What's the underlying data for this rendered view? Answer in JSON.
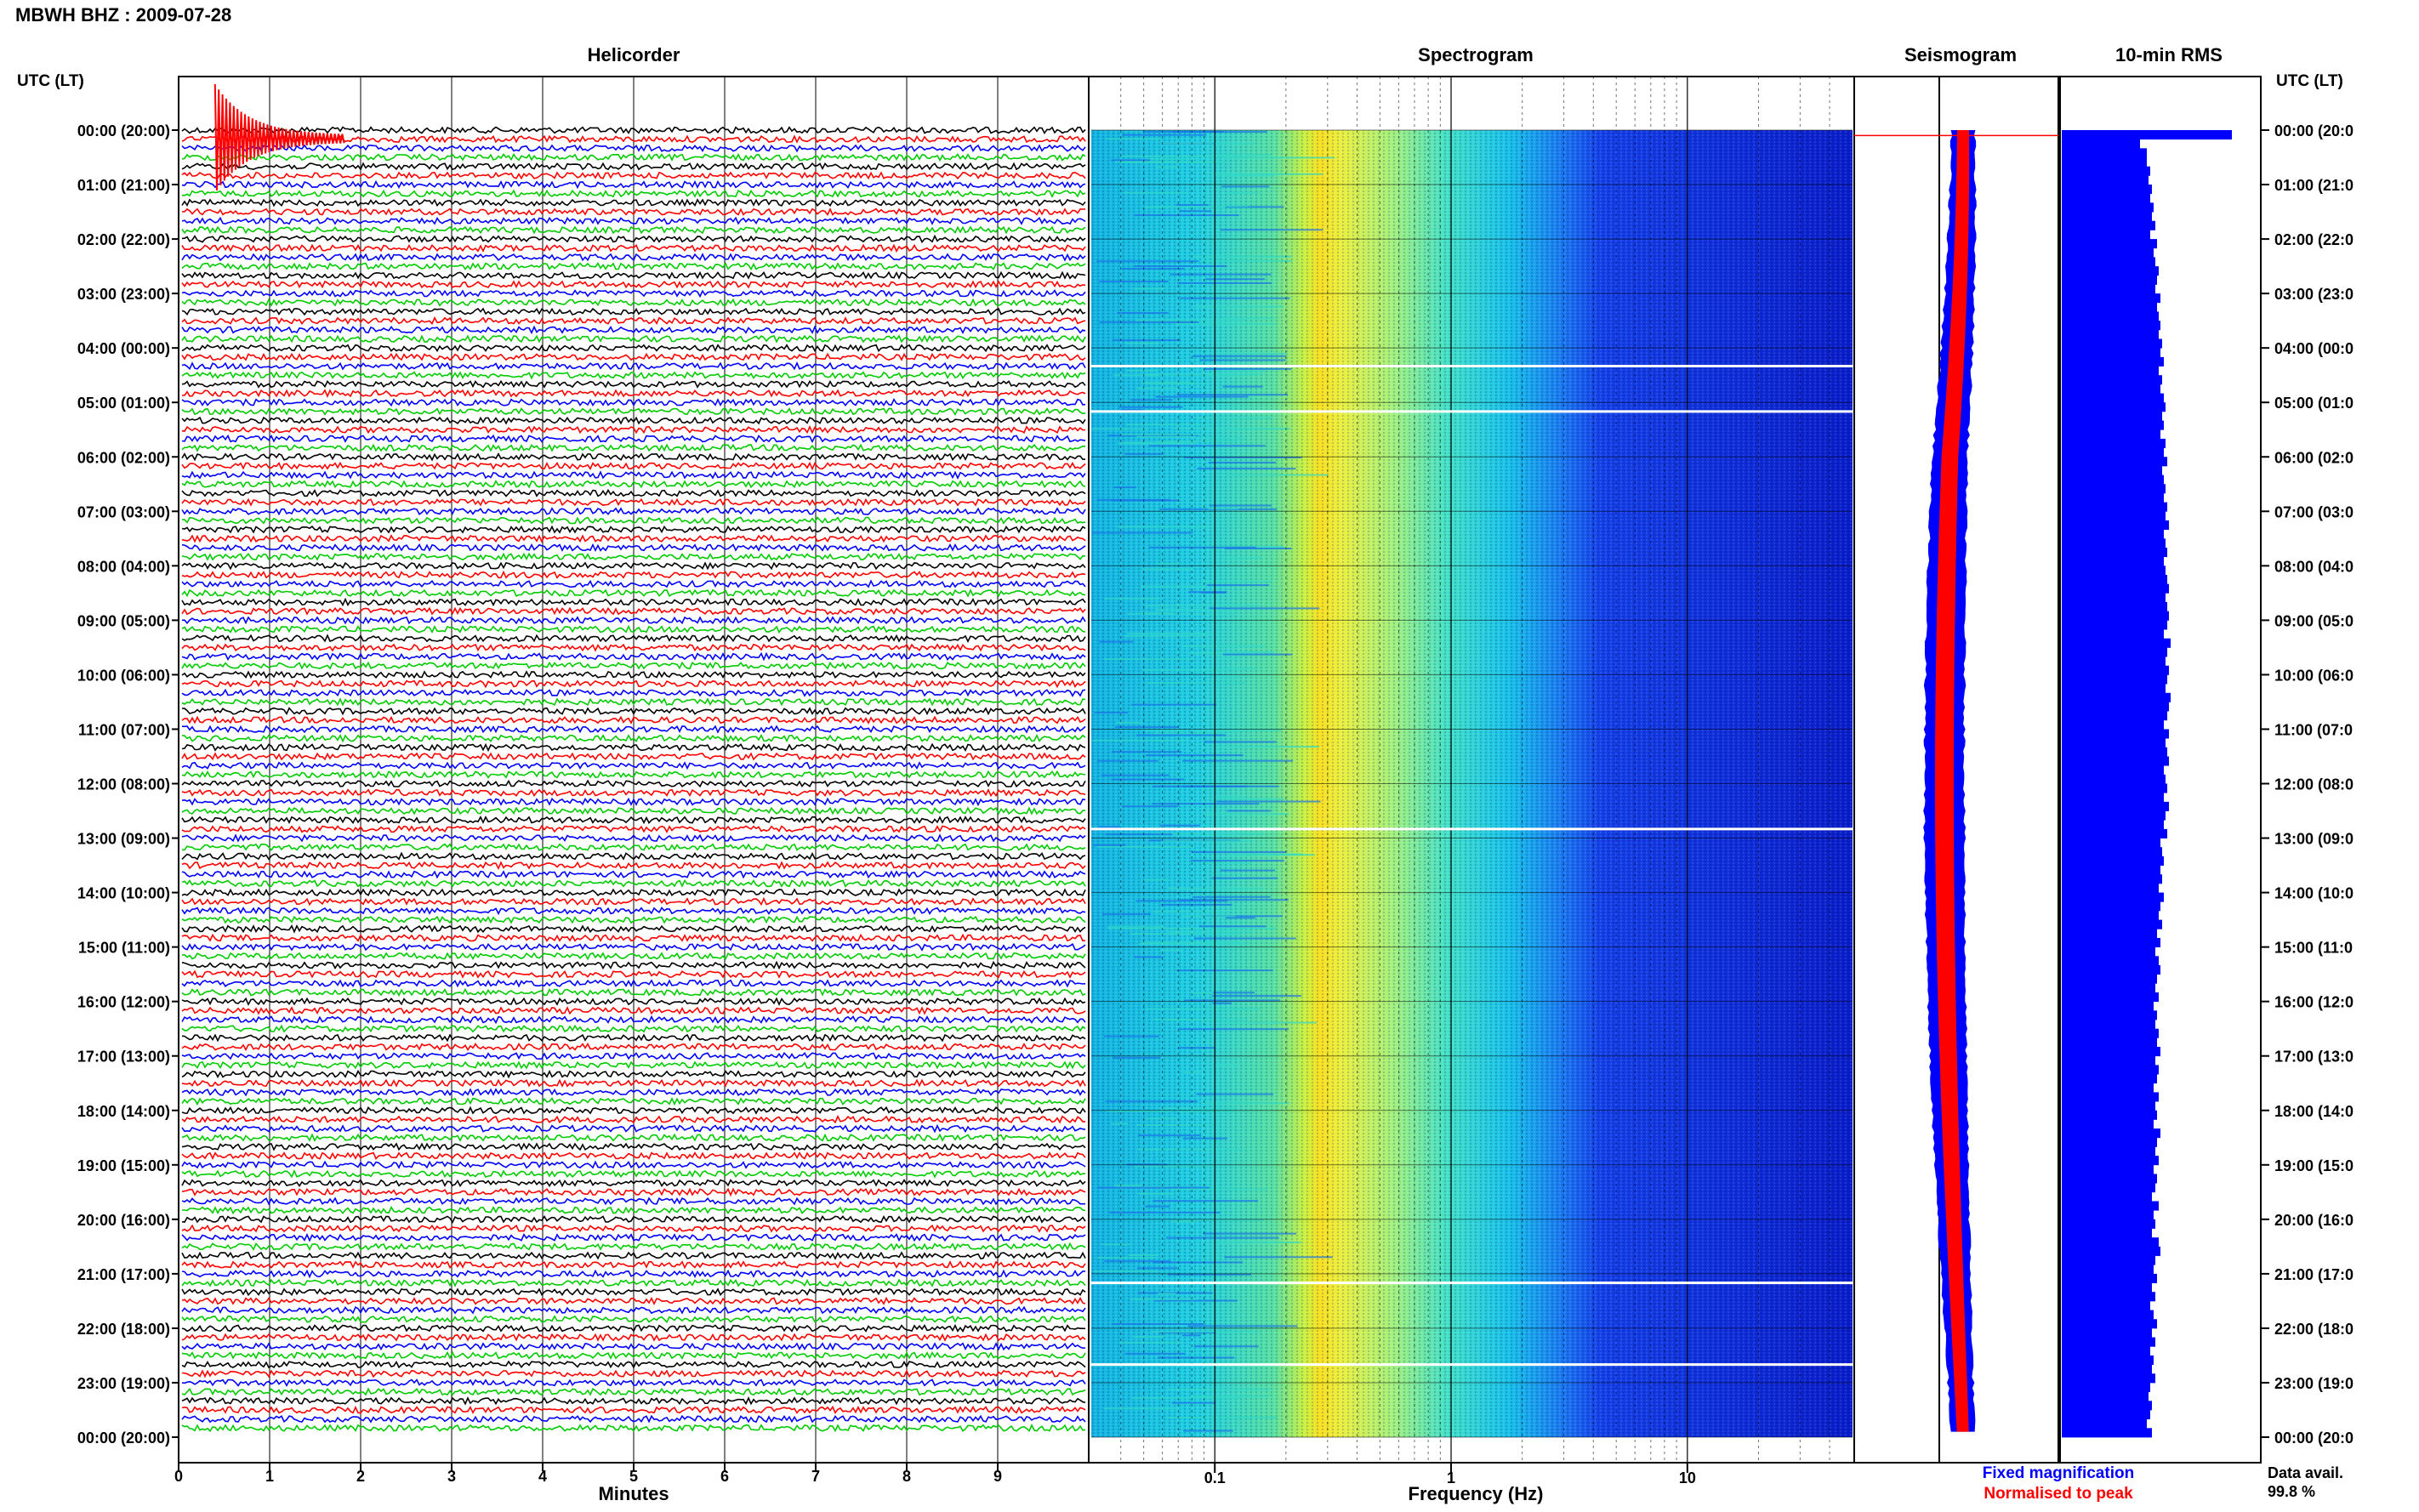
{
  "station_title": "MBWH BHZ : 2009-07-28",
  "panels": {
    "helicorder": "Helicorder",
    "spectrogram": "Spectrogram",
    "seismogram": "Seismogram",
    "rms": "10-min RMS"
  },
  "time_axis_header": "UTC (LT)",
  "time_labels_left": [
    "00:00 (20:00)",
    "01:00 (21:00)",
    "02:00 (22:00)",
    "03:00 (23:00)",
    "04:00 (00:00)",
    "05:00 (01:00)",
    "06:00 (02:00)",
    "07:00 (03:00)",
    "08:00 (04:00)",
    "09:00 (05:00)",
    "10:00 (06:00)",
    "11:00 (07:00)",
    "12:00 (08:00)",
    "13:00 (09:00)",
    "14:00 (10:00)",
    "15:00 (11:00)",
    "16:00 (12:00)",
    "17:00 (13:00)",
    "18:00 (14:00)",
    "19:00 (15:00)",
    "20:00 (16:00)",
    "21:00 (17:00)",
    "22:00 (18:00)",
    "23:00 (19:00)",
    "00:00 (20:00)"
  ],
  "time_labels_right": [
    "00:00 (20:0",
    "01:00 (21:0",
    "02:00 (22:0",
    "03:00 (23:0",
    "04:00 (00:0",
    "05:00 (01:0",
    "06:00 (02:0",
    "07:00 (03:0",
    "08:00 (04:0",
    "09:00 (05:0",
    "10:00 (06:0",
    "11:00 (07:0",
    "12:00 (08:0",
    "13:00 (09:0",
    "14:00 (10:0",
    "15:00 (11:0",
    "16:00 (12:0",
    "17:00 (13:0",
    "18:00 (14:0",
    "19:00 (15:0",
    "20:00 (16:0",
    "21:00 (17:0",
    "22:00 (18:0",
    "23:00 (19:0",
    "00:00 (20:0"
  ],
  "helicorder_xlabel": "Minutes",
  "helicorder_ticks": [
    "0",
    "1",
    "2",
    "3",
    "4",
    "5",
    "6",
    "7",
    "8",
    "9"
  ],
  "spectrogram_xlabel": "Frequency (Hz)",
  "spectrogram_ticks": [
    "0.1",
    "1",
    "10"
  ],
  "legend": {
    "fixed": "Fixed magnification",
    "peak": "Normalised to peak"
  },
  "data_avail": {
    "label": "Data avail.",
    "value": "99.8 %"
  },
  "colors": {
    "trace_cycle": [
      "#000000",
      "#ff0000",
      "#0000ff",
      "#00cc00"
    ],
    "fixed_magnification": "#0000ff",
    "normalised_to_peak": "#ff0000",
    "rms_bar": "#0000ff",
    "spectrogram_low": "#0a1ee0",
    "spectrogram_mid": "#12c8e8",
    "spectrogram_high": "#f0e020",
    "spectrogram_peak": "#ff8c00"
  },
  "chart_data": [
    {
      "type": "line",
      "panel": "Helicorder",
      "xlabel": "Minutes",
      "x_range": [
        0,
        10
      ],
      "rows_per_hour": 6,
      "hours": 24,
      "event": {
        "hour": "00:00",
        "minute": 0.4
      }
    },
    {
      "type": "heatmap",
      "panel": "Spectrogram",
      "xlabel": "Frequency (Hz)",
      "x_scale": "log",
      "x_range": [
        0.03,
        50
      ],
      "peak_band_hz": [
        0.22,
        0.3
      ],
      "gaps_utc": [
        "04:20",
        "05:10",
        "12:50",
        "21:10",
        "22:40"
      ]
    },
    {
      "type": "line",
      "panel": "Seismogram",
      "series": [
        {
          "name": "Fixed magnification"
        },
        {
          "name": "Normalised to peak"
        }
      ]
    },
    {
      "type": "bar",
      "panel": "10-min RMS",
      "values": [
        1.0,
        0.46,
        0.5,
        0.5,
        0.52,
        0.51,
        0.53,
        0.52,
        0.54,
        0.53,
        0.55,
        0.52,
        0.56,
        0.54,
        0.55,
        0.57,
        0.56,
        0.55,
        0.58,
        0.56,
        0.57,
        0.58,
        0.57,
        0.59,
        0.58,
        0.6,
        0.57,
        0.59,
        0.58,
        0.6,
        0.61,
        0.59,
        0.6,
        0.58,
        0.61,
        0.6,
        0.62,
        0.59,
        0.6,
        0.61,
        0.6,
        0.62,
        0.61,
        0.63,
        0.6,
        0.61,
        0.62,
        0.6,
        0.61,
        0.62,
        0.63,
        0.61,
        0.62,
        0.63,
        0.62,
        0.6,
        0.64,
        0.62,
        0.61,
        0.63,
        0.62,
        0.61,
        0.64,
        0.63,
        0.62,
        0.6,
        0.63,
        0.61,
        0.62,
        0.63,
        0.6,
        0.61,
        0.62,
        0.6,
        0.63,
        0.61,
        0.6,
        0.62,
        0.58,
        0.59,
        0.6,
        0.58,
        0.59,
        0.57,
        0.6,
        0.58,
        0.57,
        0.59,
        0.56,
        0.58,
        0.55,
        0.57,
        0.58,
        0.56,
        0.55,
        0.57,
        0.54,
        0.56,
        0.55,
        0.57,
        0.56,
        0.58,
        0.55,
        0.57,
        0.56,
        0.54,
        0.57,
        0.55,
        0.56,
        0.54,
        0.58,
        0.56,
        0.55,
        0.57,
        0.54,
        0.56,
        0.55,
        0.53,
        0.57,
        0.54,
        0.55,
        0.53,
        0.57,
        0.58,
        0.55,
        0.54,
        0.56,
        0.53,
        0.55,
        0.52,
        0.54,
        0.56,
        0.53,
        0.55,
        0.52,
        0.54,
        0.53,
        0.55,
        0.52,
        0.51,
        0.53,
        0.52,
        0.5,
        0.53
      ]
    }
  ]
}
